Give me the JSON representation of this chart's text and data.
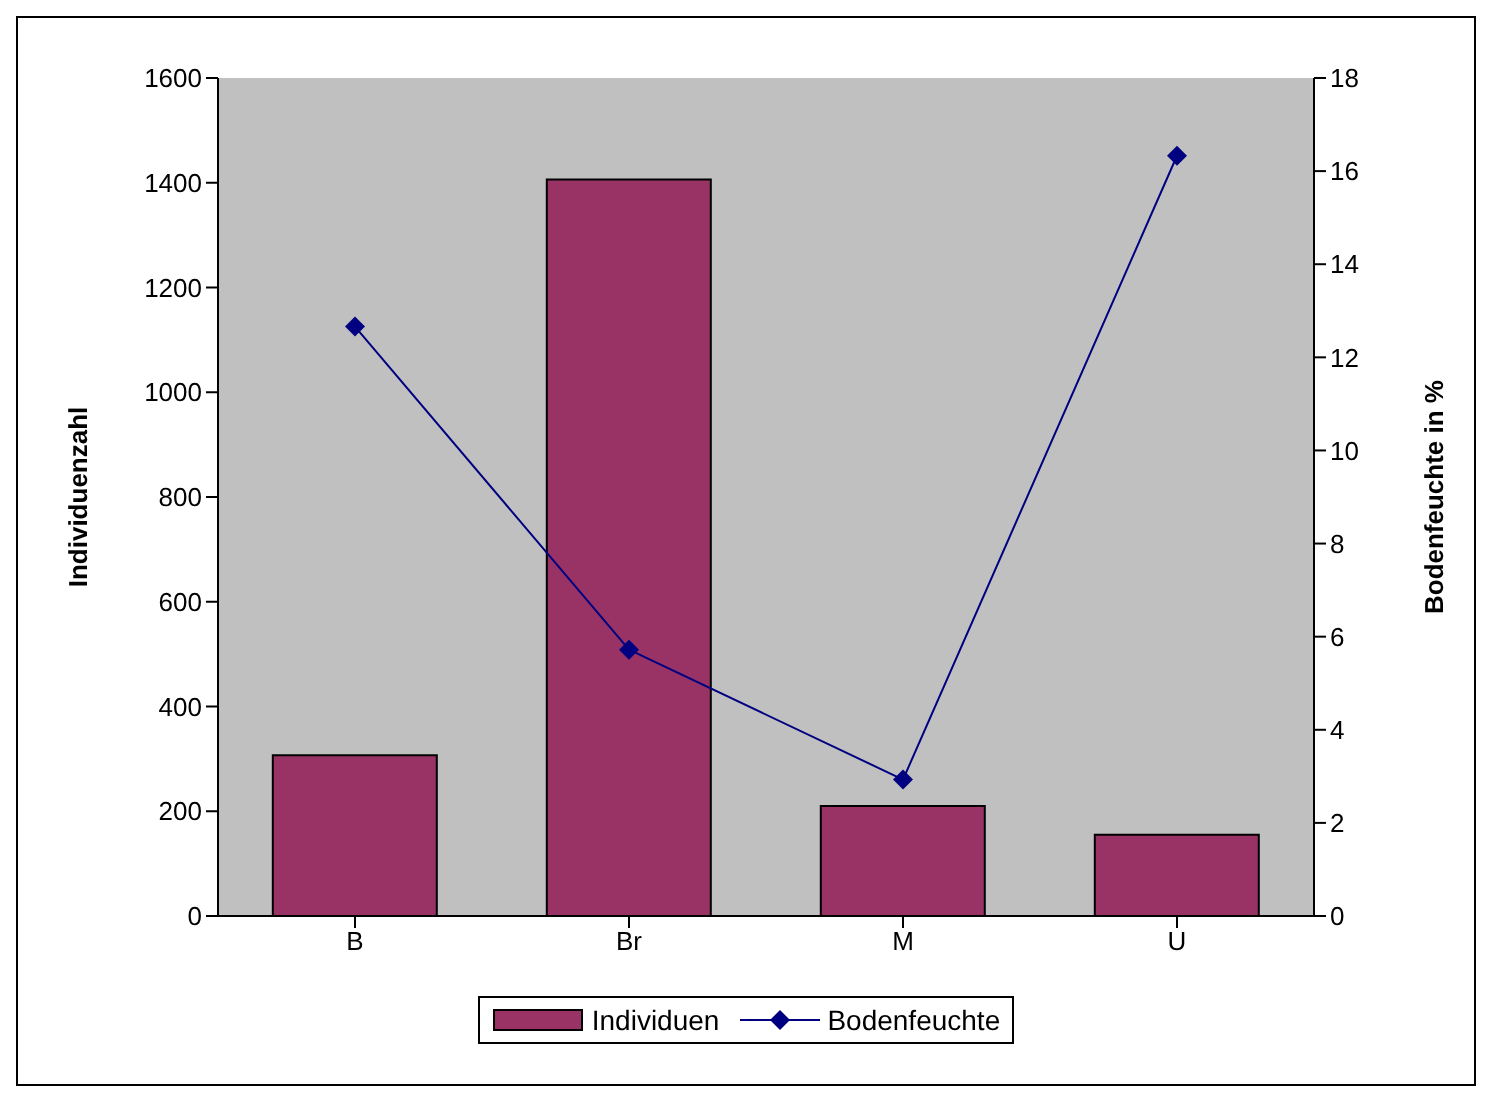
{
  "chart_data": {
    "type": "bar",
    "categories": [
      "B",
      "Br",
      "M",
      "U"
    ],
    "ylabel": "Individuenzahl",
    "y2label": "Bodenfeuchte in %",
    "series": [
      {
        "name": "Individuen",
        "color": "#993366",
        "values": [
          307,
          1406,
          210,
          155
        ]
      },
      {
        "name": "Bodenfeuchte",
        "type": "line",
        "axis": "y2",
        "color": "#000080",
        "values": [
          12.66,
          5.72,
          2.93,
          16.33
        ],
        "marker": "diamond"
      }
    ],
    "ylim": [
      0,
      1600
    ],
    "yticks": [
      0,
      200,
      400,
      600,
      800,
      1000,
      1200,
      1400,
      1600
    ],
    "y2lim": [
      0,
      18
    ],
    "y2ticks": [
      0,
      2,
      4,
      6,
      8,
      10,
      12,
      14,
      16,
      18
    ],
    "grid": false,
    "legend": "bottom"
  }
}
